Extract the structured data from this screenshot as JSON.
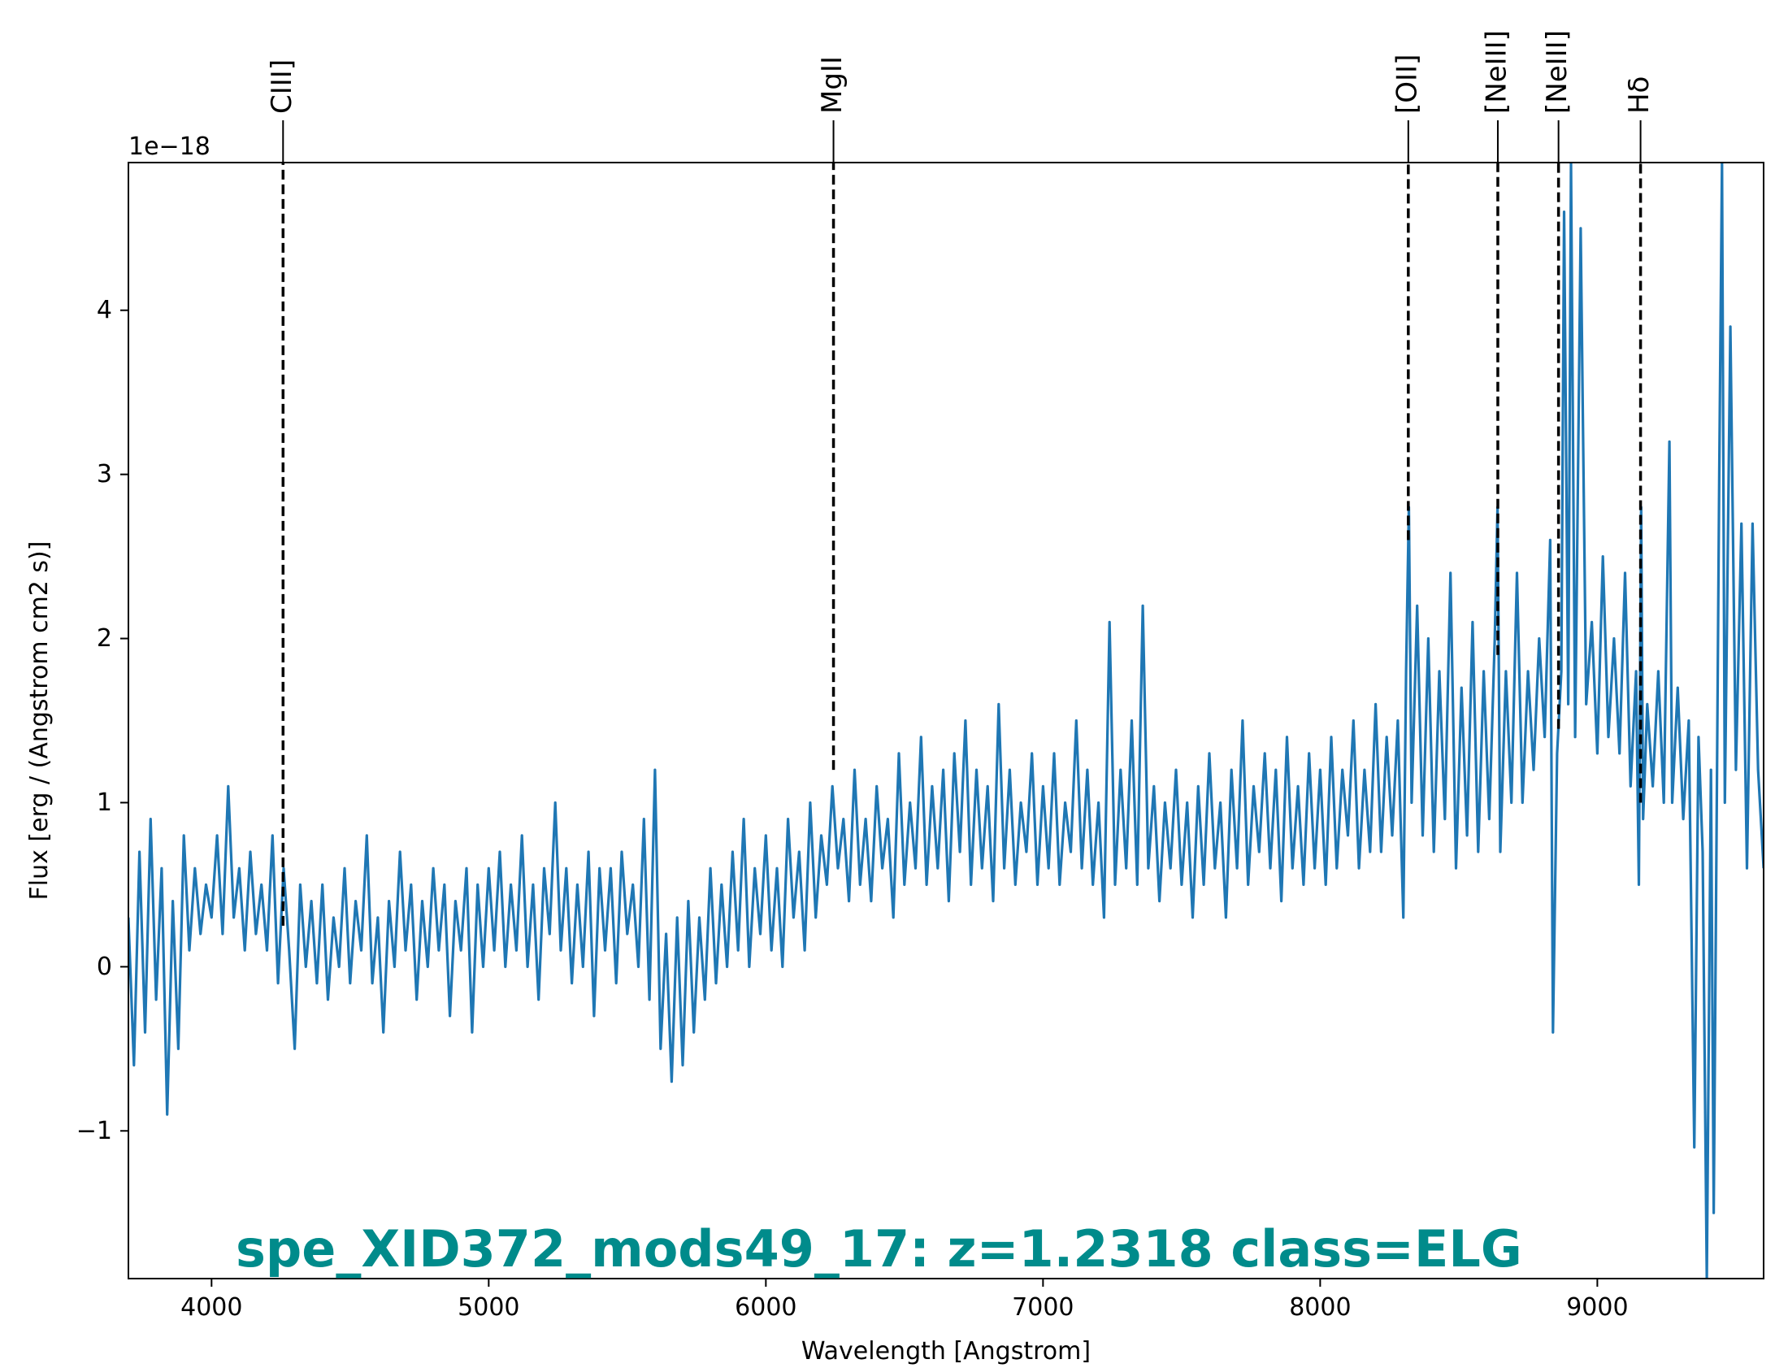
{
  "chart_data": {
    "type": "line",
    "title": "spe_XID372_mods49_17: z=1.2318 class=ELG",
    "title_color": "#008b8b",
    "xlabel": "Wavelength [Angstrom]",
    "ylabel": "Flux [erg / (Angstrom cm2 s)]",
    "y_offset_text": "1e−18",
    "xlim": [
      3700,
      9600
    ],
    "ylim": [
      -1.9,
      4.9
    ],
    "x_ticks": [
      4000,
      5000,
      6000,
      7000,
      8000,
      9000
    ],
    "x_tick_labels": [
      "4000",
      "5000",
      "6000",
      "7000",
      "8000",
      "9000"
    ],
    "y_ticks": [
      -1,
      0,
      1,
      2,
      3,
      4
    ],
    "y_tick_labels": [
      "−1",
      "0",
      "1",
      "2",
      "3",
      "4"
    ],
    "grid": false,
    "series_color": "#1f77b4",
    "line_color": "#000000",
    "spectral_lines": [
      {
        "label": "CIII]",
        "x": 4258,
        "y": 0.25
      },
      {
        "label": "MgII",
        "x": 6244,
        "y": 1.2
      },
      {
        "label": "[OII]",
        "x": 8318,
        "y": 2.6
      },
      {
        "label": "[NeIII]",
        "x": 8641,
        "y": 1.9
      },
      {
        "label": "[NeIII]",
        "x": 8860,
        "y": 1.45
      },
      {
        "label": "Hδ",
        "x": 9156,
        "y": 1.0
      }
    ],
    "series": [
      {
        "points": [
          [
            3700,
            0.3
          ],
          [
            3720,
            -0.6
          ],
          [
            3740,
            0.7
          ],
          [
            3760,
            -0.4
          ],
          [
            3780,
            0.9
          ],
          [
            3800,
            -0.2
          ],
          [
            3820,
            0.6
          ],
          [
            3840,
            -0.9
          ],
          [
            3860,
            0.4
          ],
          [
            3880,
            -0.5
          ],
          [
            3900,
            0.8
          ],
          [
            3920,
            0.1
          ],
          [
            3940,
            0.6
          ],
          [
            3960,
            0.2
          ],
          [
            3980,
            0.5
          ],
          [
            4000,
            0.3
          ],
          [
            4020,
            0.8
          ],
          [
            4040,
            0.2
          ],
          [
            4060,
            1.1
          ],
          [
            4080,
            0.3
          ],
          [
            4100,
            0.6
          ],
          [
            4120,
            0.1
          ],
          [
            4140,
            0.7
          ],
          [
            4160,
            0.2
          ],
          [
            4180,
            0.5
          ],
          [
            4200,
            0.1
          ],
          [
            4220,
            0.8
          ],
          [
            4240,
            -0.1
          ],
          [
            4260,
            0.6
          ],
          [
            4280,
            0.1
          ],
          [
            4300,
            -0.5
          ],
          [
            4320,
            0.5
          ],
          [
            4340,
            0.0
          ],
          [
            4360,
            0.4
          ],
          [
            4380,
            -0.1
          ],
          [
            4400,
            0.5
          ],
          [
            4420,
            -0.2
          ],
          [
            4440,
            0.3
          ],
          [
            4460,
            0.0
          ],
          [
            4480,
            0.6
          ],
          [
            4500,
            -0.1
          ],
          [
            4520,
            0.4
          ],
          [
            4540,
            0.1
          ],
          [
            4560,
            0.8
          ],
          [
            4580,
            -0.1
          ],
          [
            4600,
            0.3
          ],
          [
            4620,
            -0.4
          ],
          [
            4640,
            0.4
          ],
          [
            4660,
            0.0
          ],
          [
            4680,
            0.7
          ],
          [
            4700,
            0.1
          ],
          [
            4720,
            0.5
          ],
          [
            4740,
            -0.2
          ],
          [
            4760,
            0.4
          ],
          [
            4780,
            0.0
          ],
          [
            4800,
            0.6
          ],
          [
            4820,
            0.1
          ],
          [
            4840,
            0.5
          ],
          [
            4860,
            -0.3
          ],
          [
            4880,
            0.4
          ],
          [
            4900,
            0.1
          ],
          [
            4920,
            0.6
          ],
          [
            4940,
            -0.4
          ],
          [
            4960,
            0.5
          ],
          [
            4980,
            0.0
          ],
          [
            5000,
            0.6
          ],
          [
            5020,
            0.1
          ],
          [
            5040,
            0.7
          ],
          [
            5060,
            0.0
          ],
          [
            5080,
            0.5
          ],
          [
            5100,
            0.1
          ],
          [
            5120,
            0.8
          ],
          [
            5140,
            0.0
          ],
          [
            5160,
            0.5
          ],
          [
            5180,
            -0.2
          ],
          [
            5200,
            0.6
          ],
          [
            5220,
            0.2
          ],
          [
            5240,
            1.0
          ],
          [
            5260,
            0.1
          ],
          [
            5280,
            0.6
          ],
          [
            5300,
            -0.1
          ],
          [
            5320,
            0.5
          ],
          [
            5340,
            0.0
          ],
          [
            5360,
            0.7
          ],
          [
            5380,
            -0.3
          ],
          [
            5400,
            0.6
          ],
          [
            5420,
            0.1
          ],
          [
            5440,
            0.6
          ],
          [
            5460,
            -0.1
          ],
          [
            5480,
            0.7
          ],
          [
            5500,
            0.2
          ],
          [
            5520,
            0.5
          ],
          [
            5540,
            0.0
          ],
          [
            5560,
            0.9
          ],
          [
            5580,
            -0.2
          ],
          [
            5600,
            1.2
          ],
          [
            5620,
            -0.5
          ],
          [
            5640,
            0.2
          ],
          [
            5660,
            -0.7
          ],
          [
            5680,
            0.3
          ],
          [
            5700,
            -0.6
          ],
          [
            5720,
            0.4
          ],
          [
            5740,
            -0.4
          ],
          [
            5760,
            0.3
          ],
          [
            5780,
            -0.2
          ],
          [
            5800,
            0.6
          ],
          [
            5820,
            -0.1
          ],
          [
            5840,
            0.5
          ],
          [
            5860,
            0.0
          ],
          [
            5880,
            0.7
          ],
          [
            5900,
            0.1
          ],
          [
            5920,
            0.9
          ],
          [
            5940,
            0.0
          ],
          [
            5960,
            0.6
          ],
          [
            5980,
            0.2
          ],
          [
            6000,
            0.8
          ],
          [
            6020,
            0.1
          ],
          [
            6040,
            0.6
          ],
          [
            6060,
            0.0
          ],
          [
            6080,
            0.9
          ],
          [
            6100,
            0.3
          ],
          [
            6120,
            0.7
          ],
          [
            6140,
            0.1
          ],
          [
            6160,
            1.0
          ],
          [
            6180,
            0.3
          ],
          [
            6200,
            0.8
          ],
          [
            6220,
            0.5
          ],
          [
            6240,
            1.1
          ],
          [
            6260,
            0.6
          ],
          [
            6280,
            0.9
          ],
          [
            6300,
            0.4
          ],
          [
            6320,
            1.2
          ],
          [
            6340,
            0.5
          ],
          [
            6360,
            0.9
          ],
          [
            6380,
            0.4
          ],
          [
            6400,
            1.1
          ],
          [
            6420,
            0.6
          ],
          [
            6440,
            0.9
          ],
          [
            6460,
            0.3
          ],
          [
            6480,
            1.3
          ],
          [
            6500,
            0.5
          ],
          [
            6520,
            1.0
          ],
          [
            6540,
            0.6
          ],
          [
            6560,
            1.4
          ],
          [
            6580,
            0.5
          ],
          [
            6600,
            1.1
          ],
          [
            6620,
            0.6
          ],
          [
            6640,
            1.2
          ],
          [
            6660,
            0.4
          ],
          [
            6680,
            1.3
          ],
          [
            6700,
            0.7
          ],
          [
            6720,
            1.5
          ],
          [
            6740,
            0.5
          ],
          [
            6760,
            1.2
          ],
          [
            6780,
            0.6
          ],
          [
            6800,
            1.1
          ],
          [
            6820,
            0.4
          ],
          [
            6840,
            1.6
          ],
          [
            6860,
            0.6
          ],
          [
            6880,
            1.2
          ],
          [
            6900,
            0.5
          ],
          [
            6920,
            1.0
          ],
          [
            6940,
            0.7
          ],
          [
            6960,
            1.3
          ],
          [
            6980,
            0.5
          ],
          [
            7000,
            1.1
          ],
          [
            7020,
            0.6
          ],
          [
            7040,
            1.3
          ],
          [
            7060,
            0.5
          ],
          [
            7080,
            1.0
          ],
          [
            7100,
            0.7
          ],
          [
            7120,
            1.5
          ],
          [
            7140,
            0.6
          ],
          [
            7160,
            1.2
          ],
          [
            7180,
            0.5
          ],
          [
            7200,
            1.0
          ],
          [
            7220,
            0.3
          ],
          [
            7240,
            2.1
          ],
          [
            7260,
            0.5
          ],
          [
            7280,
            1.2
          ],
          [
            7300,
            0.6
          ],
          [
            7320,
            1.5
          ],
          [
            7340,
            0.5
          ],
          [
            7360,
            2.2
          ],
          [
            7380,
            0.6
          ],
          [
            7400,
            1.1
          ],
          [
            7420,
            0.4
          ],
          [
            7440,
            1.0
          ],
          [
            7460,
            0.6
          ],
          [
            7480,
            1.2
          ],
          [
            7500,
            0.5
          ],
          [
            7520,
            1.0
          ],
          [
            7540,
            0.3
          ],
          [
            7560,
            1.1
          ],
          [
            7580,
            0.5
          ],
          [
            7600,
            1.3
          ],
          [
            7620,
            0.6
          ],
          [
            7640,
            1.0
          ],
          [
            7660,
            0.3
          ],
          [
            7680,
            1.2
          ],
          [
            7700,
            0.6
          ],
          [
            7720,
            1.5
          ],
          [
            7740,
            0.5
          ],
          [
            7760,
            1.1
          ],
          [
            7780,
            0.7
          ],
          [
            7800,
            1.3
          ],
          [
            7820,
            0.6
          ],
          [
            7840,
            1.2
          ],
          [
            7860,
            0.4
          ],
          [
            7880,
            1.4
          ],
          [
            7900,
            0.6
          ],
          [
            7920,
            1.1
          ],
          [
            7940,
            0.5
          ],
          [
            7960,
            1.3
          ],
          [
            7980,
            0.6
          ],
          [
            8000,
            1.2
          ],
          [
            8020,
            0.5
          ],
          [
            8040,
            1.4
          ],
          [
            8060,
            0.6
          ],
          [
            8080,
            1.2
          ],
          [
            8100,
            0.8
          ],
          [
            8120,
            1.5
          ],
          [
            8140,
            0.6
          ],
          [
            8160,
            1.2
          ],
          [
            8180,
            0.7
          ],
          [
            8200,
            1.6
          ],
          [
            8220,
            0.7
          ],
          [
            8240,
            1.4
          ],
          [
            8260,
            0.8
          ],
          [
            8280,
            1.5
          ],
          [
            8300,
            0.3
          ],
          [
            8310,
            1.8
          ],
          [
            8320,
            2.8
          ],
          [
            8330,
            1.0
          ],
          [
            8350,
            2.2
          ],
          [
            8370,
            0.8
          ],
          [
            8390,
            2.0
          ],
          [
            8410,
            0.7
          ],
          [
            8430,
            1.8
          ],
          [
            8450,
            0.9
          ],
          [
            8470,
            2.4
          ],
          [
            8490,
            0.6
          ],
          [
            8510,
            1.7
          ],
          [
            8530,
            0.8
          ],
          [
            8550,
            2.1
          ],
          [
            8570,
            0.7
          ],
          [
            8590,
            1.8
          ],
          [
            8610,
            0.9
          ],
          [
            8630,
            2.0
          ],
          [
            8640,
            2.8
          ],
          [
            8650,
            0.7
          ],
          [
            8670,
            1.8
          ],
          [
            8690,
            1.0
          ],
          [
            8710,
            2.4
          ],
          [
            8730,
            1.0
          ],
          [
            8750,
            1.8
          ],
          [
            8770,
            1.2
          ],
          [
            8790,
            2.0
          ],
          [
            8810,
            1.4
          ],
          [
            8830,
            2.6
          ],
          [
            8840,
            -0.4
          ],
          [
            8855,
            1.3
          ],
          [
            8870,
            1.8
          ],
          [
            8880,
            4.6
          ],
          [
            8895,
            1.6
          ],
          [
            8905,
            4.9
          ],
          [
            8920,
            1.4
          ],
          [
            8940,
            4.5
          ],
          [
            8960,
            1.6
          ],
          [
            8980,
            2.1
          ],
          [
            9000,
            1.3
          ],
          [
            9020,
            2.5
          ],
          [
            9040,
            1.4
          ],
          [
            9060,
            2.0
          ],
          [
            9080,
            1.3
          ],
          [
            9100,
            2.4
          ],
          [
            9120,
            1.1
          ],
          [
            9140,
            1.8
          ],
          [
            9150,
            0.5
          ],
          [
            9158,
            2.8
          ],
          [
            9165,
            0.9
          ],
          [
            9180,
            1.6
          ],
          [
            9200,
            1.1
          ],
          [
            9220,
            1.8
          ],
          [
            9240,
            1.0
          ],
          [
            9260,
            3.2
          ],
          [
            9270,
            1.0
          ],
          [
            9290,
            1.7
          ],
          [
            9310,
            0.9
          ],
          [
            9330,
            1.5
          ],
          [
            9350,
            -1.1
          ],
          [
            9365,
            1.4
          ],
          [
            9380,
            0.7
          ],
          [
            9395,
            -1.9
          ],
          [
            9410,
            1.2
          ],
          [
            9420,
            -1.5
          ],
          [
            9440,
            3.0
          ],
          [
            9450,
            4.9
          ],
          [
            9460,
            1.0
          ],
          [
            9480,
            3.9
          ],
          [
            9500,
            1.2
          ],
          [
            9520,
            2.7
          ],
          [
            9540,
            0.6
          ],
          [
            9560,
            2.7
          ],
          [
            9580,
            1.2
          ],
          [
            9600,
            0.6
          ]
        ]
      }
    ]
  }
}
